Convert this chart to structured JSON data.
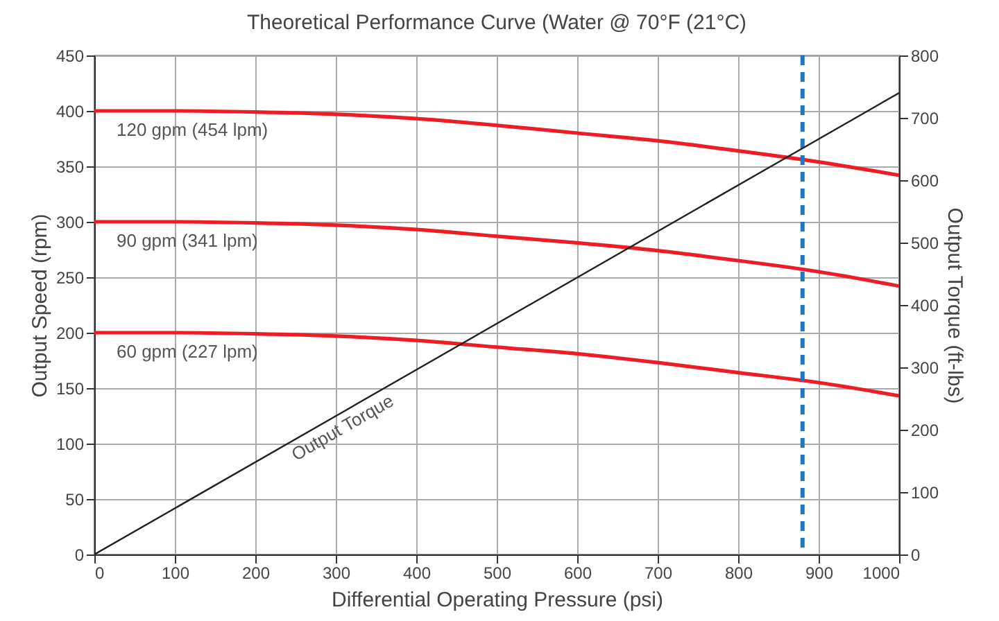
{
  "chart_data": {
    "type": "line",
    "title": "Theoretical Performance Curve (Water @ 70°F (21°C)",
    "xlabel": "Differential Operating Pressure (psi)",
    "ylabel": "Output Speed (rpm)",
    "y2label": "Output Torque (ft-lbs)",
    "x": [
      0,
      100,
      200,
      300,
      400,
      500,
      600,
      700,
      800,
      900,
      1000
    ],
    "series": [
      {
        "name": "120 gpm (454 lpm)",
        "color": "#ee1c25",
        "values": [
          400,
          400,
          399,
          397,
          393,
          387,
          380,
          373,
          364,
          354,
          342
        ]
      },
      {
        "name": "90 gpm (341 lpm)",
        "color": "#ee1c25",
        "values": [
          300,
          300,
          299,
          297,
          293,
          287,
          281,
          274,
          265,
          255,
          242
        ]
      },
      {
        "name": "60 gpm (227 lpm)",
        "color": "#ee1c25",
        "values": [
          200,
          200,
          199,
          197,
          193,
          187,
          181,
          173,
          164,
          155,
          143
        ]
      },
      {
        "name": "Output Torque",
        "color": "#222222",
        "axis": "y2",
        "x": [
          0,
          1000
        ],
        "values": [
          0,
          740
        ]
      }
    ],
    "xlim": [
      0,
      1000
    ],
    "xticks": [
      0,
      100,
      200,
      300,
      400,
      500,
      600,
      700,
      800,
      900,
      1000
    ],
    "ylim": [
      0,
      450
    ],
    "yticks": [
      0,
      50,
      100,
      150,
      200,
      250,
      300,
      350,
      400,
      450
    ],
    "y2lim": [
      0,
      800
    ],
    "y2ticks": [
      0,
      100,
      200,
      300,
      400,
      500,
      600,
      700,
      800
    ],
    "grid": true,
    "ref_lines": [
      {
        "axis": "x",
        "value": 880,
        "color": "#1f77c4",
        "line_style": "dashed"
      }
    ]
  }
}
